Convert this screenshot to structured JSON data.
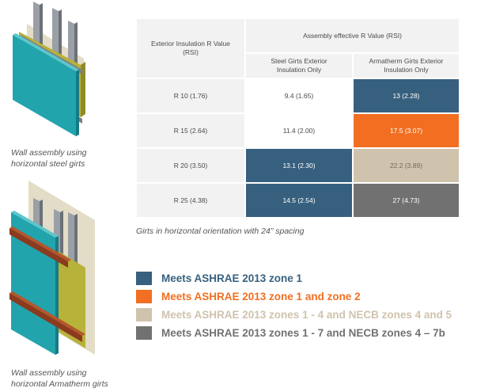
{
  "captions": {
    "steel": [
      "Wall assembly using",
      "horizontal steel girts"
    ],
    "armatherm": [
      "Wall assembly using",
      "horizontal Armatherm girts"
    ]
  },
  "colors": {
    "zone1": "#37607f",
    "zone1_2": "#f26f21",
    "zone1_4": "#cfc3ad",
    "zone1_7": "#717171",
    "header_bg": "#f2f2f2"
  },
  "table": {
    "col1_header": "Exterior Insulation R Value (RSI)",
    "group_header": "Assembly effective R Value (RSI)",
    "col2_header": "Steel Girts Exterior Insulation Only",
    "col3_header": "Armatherm Girts Exterior Insulation Only",
    "rows": [
      {
        "label": "R 10 (1.76)",
        "steel": "9.4 (1.65)",
        "steel_level": "none",
        "armatherm": "13 (2.28)",
        "armatherm_level": "zone1"
      },
      {
        "label": "R 15 (2.64)",
        "steel": "11.4 (2.00)",
        "steel_level": "none",
        "armatherm": "17.5 (3.07)",
        "armatherm_level": "zone1_2"
      },
      {
        "label": "R 20 (3.50)",
        "steel": "13.1 (2.30)",
        "steel_level": "zone1",
        "armatherm": "22.2 (3.89)",
        "armatherm_level": "zone1_4"
      },
      {
        "label": "R 25 (4.38)",
        "steel": "14.5 (2.54)",
        "steel_level": "zone1",
        "armatherm": "27 (4.73)",
        "armatherm_level": "zone1_7"
      }
    ]
  },
  "footnote": "Girts in horizontal orientation with 24” spacing",
  "legend": [
    {
      "key": "zone1",
      "label": "Meets ASHRAE 2013 zone 1"
    },
    {
      "key": "zone1_2",
      "label": "Meets ASHRAE 2013 zone 1 and zone 2"
    },
    {
      "key": "zone1_4",
      "label": "Meets ASHRAE 2013 zones 1 - 4 and NECB zones 4 and 5"
    },
    {
      "key": "zone1_7",
      "label": "Meets ASHRAE 2013 zones 1 - 7 and NECB zones 4 – 7b"
    }
  ]
}
